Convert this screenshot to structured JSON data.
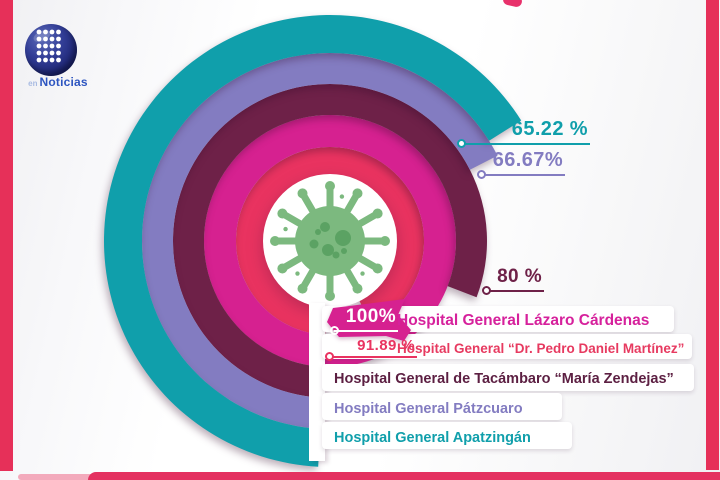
{
  "logo": {
    "prefix": "en",
    "name": "Noticias",
    "name_color": "#2d55c0"
  },
  "decor": {
    "side_strip_color": "#e63059",
    "bottom_bar_color": "#e43160",
    "accent_pink": "#f3aabc",
    "title_fragment_color": "#e8316b"
  },
  "chart_data": {
    "type": "bar",
    "variant": "concentric-radial-bars",
    "title": "",
    "unit": "%",
    "value_range": [
      0,
      100
    ],
    "direction": "clockwise",
    "start_position": "bottom",
    "center_icon": "coronavirus",
    "center_icon_colors": {
      "plate": "#ffffff",
      "body": "#7cb97f",
      "spots": "#5ba263"
    },
    "series": [
      {
        "hospital": "Hospital General Apatzingán",
        "value": 65.22,
        "label": "65.22 %",
        "color": "#109fab",
        "text_color": "#109fab"
      },
      {
        "hospital": "Hospital General Pátzcuaro",
        "value": 66.67,
        "label": "66.67%",
        "color": "#837cc1",
        "text_color": "#837cc1"
      },
      {
        "hospital": "Hospital General de Tacámbaro “María Zendejas”",
        "value": 80,
        "label": "80 %",
        "color": "#6e2148",
        "text_color": "#5c1f42"
      },
      {
        "hospital": "Hospital General Lázaro Cárdenas",
        "value": 100,
        "label": "100%",
        "color": "#d62190",
        "text_color": "#d6219c"
      },
      {
        "hospital": "Hospital General “Dr. Pedro Daniel Martínez”",
        "value": 91.89,
        "label": "91.89 %",
        "color": "#e93360",
        "text_color": "#e73a60"
      }
    ]
  }
}
